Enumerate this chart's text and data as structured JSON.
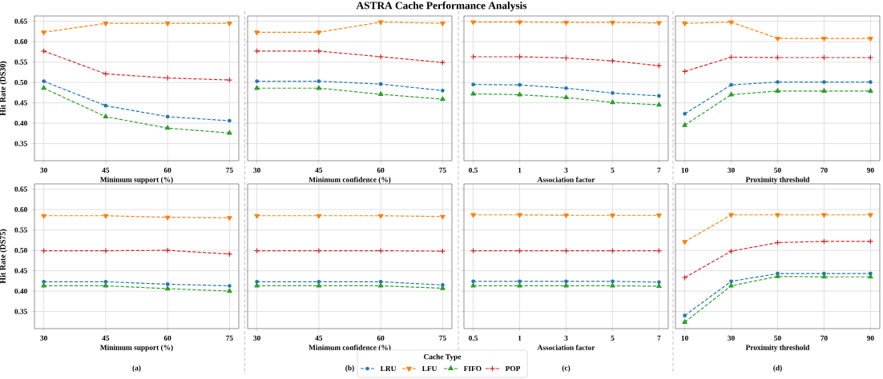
{
  "chart_data": [
    {
      "type": "line",
      "xlabel": "Minimum support (%)",
      "ylabel": "Hit Rate (DS30)",
      "categories": [
        "30",
        "45",
        "60",
        "75"
      ],
      "ylim": [
        0.308,
        0.663
      ],
      "yticks": [
        0.35,
        {
          "value": 0.4,
          "label": "0.40"
        },
        0.45,
        {
          "value": 0.5,
          "label": "0.50"
        },
        0.55,
        {
          "value": 0.6,
          "label": "0.60"
        },
        0.65
      ],
      "grid": true,
      "line_style": "dashed",
      "series": [
        {
          "color": "#1f77b4",
          "marker": "circle",
          "values": [
            0.503,
            0.443,
            0.416,
            0.406
          ]
        },
        {
          "color": "#ff7f0e",
          "marker": "triangle_down",
          "values": [
            0.623,
            0.645,
            0.645,
            0.645
          ]
        },
        {
          "color": "#2ca02c",
          "marker": "triangle",
          "values": [
            0.486,
            0.416,
            0.388,
            0.376
          ]
        },
        {
          "color": "#d62728",
          "marker": "cross",
          "values": [
            0.577,
            0.521,
            0.511,
            0.506
          ]
        }
      ]
    },
    {
      "type": "line",
      "title": "ASTRA Cache Performance Analysis",
      "xlabel": "Minimum confidence (%)",
      "categories": [
        "30",
        "45",
        "60",
        "75"
      ],
      "ylim": [
        0.308,
        0.663
      ],
      "yticks": [
        0.35,
        0.4,
        0.45,
        0.5,
        0.55,
        0.6,
        0.65
      ],
      "tick_labels": "x",
      "grid": true,
      "line_style": "dashed",
      "series": [
        {
          "color": "#1f77b4",
          "marker": "circle",
          "values": [
            0.503,
            0.503,
            0.496,
            0.48
          ]
        },
        {
          "color": "#ff7f0e",
          "marker": "triangle_down",
          "values": [
            0.623,
            0.623,
            0.648,
            0.645
          ]
        },
        {
          "color": "#2ca02c",
          "marker": "triangle",
          "values": [
            0.486,
            0.486,
            0.471,
            0.459
          ]
        },
        {
          "color": "#d62728",
          "marker": "cross",
          "values": [
            0.577,
            0.577,
            0.563,
            0.549
          ]
        }
      ]
    },
    {
      "type": "line",
      "xlabel": "Association factor",
      "categories": [
        "0.5",
        "1",
        "3",
        "5",
        "7"
      ],
      "ylim": [
        0.308,
        0.663
      ],
      "yticks": [
        0.35,
        0.4,
        0.45,
        0.5,
        0.55,
        0.6,
        0.65
      ],
      "tick_labels": "x",
      "grid": true,
      "line_style": "dashed",
      "series": [
        {
          "color": "#1f77b4",
          "marker": "circle",
          "values": [
            0.495,
            0.494,
            0.486,
            0.474,
            0.467
          ]
        },
        {
          "color": "#ff7f0e",
          "marker": "triangle_down",
          "values": [
            0.648,
            0.648,
            0.647,
            0.647,
            0.646
          ]
        },
        {
          "color": "#2ca02c",
          "marker": "triangle",
          "values": [
            0.472,
            0.47,
            0.463,
            0.451,
            0.445
          ]
        },
        {
          "color": "#d62728",
          "marker": "cross",
          "values": [
            0.563,
            0.563,
            0.56,
            0.553,
            0.541
          ]
        }
      ]
    },
    {
      "type": "line",
      "xlabel": "Proximity threshold",
      "categories": [
        "10",
        "30",
        "50",
        "70",
        "90"
      ],
      "ylim": [
        0.308,
        0.663
      ],
      "yticks": [
        0.35,
        0.4,
        0.45,
        0.5,
        0.55,
        0.6,
        0.65
      ],
      "tick_labels": "x",
      "grid": true,
      "line_style": "dashed",
      "series": [
        {
          "color": "#1f77b4",
          "marker": "circle",
          "values": [
            0.423,
            0.494,
            0.501,
            0.501,
            0.501
          ]
        },
        {
          "color": "#ff7f0e",
          "marker": "triangle_down",
          "values": [
            0.645,
            0.648,
            0.608,
            0.608,
            0.608
          ]
        },
        {
          "color": "#2ca02c",
          "marker": "triangle",
          "values": [
            0.395,
            0.47,
            0.479,
            0.479,
            0.479
          ]
        },
        {
          "color": "#d62728",
          "marker": "cross",
          "values": [
            0.527,
            0.562,
            0.561,
            0.561,
            0.561
          ]
        }
      ]
    },
    {
      "type": "line",
      "xlabel": "Minimum support (%)",
      "ylabel": "Hit Rate (DS75)",
      "annotations": [
        "(a)"
      ],
      "categories": [
        "30",
        "45",
        "60",
        "75"
      ],
      "ylim": [
        0.308,
        0.663
      ],
      "yticks": [
        0.35,
        {
          "value": 0.4,
          "label": "0.40"
        },
        0.45,
        {
          "value": 0.5,
          "label": "0.50"
        },
        0.55,
        {
          "value": 0.6,
          "label": "0.60"
        },
        0.65
      ],
      "grid": true,
      "line_style": "dashed",
      "series": [
        {
          "color": "#1f77b4",
          "marker": "circle",
          "values": [
            0.423,
            0.423,
            0.417,
            0.413
          ]
        },
        {
          "color": "#ff7f0e",
          "marker": "triangle_down",
          "values": [
            0.585,
            0.585,
            0.581,
            0.58
          ]
        },
        {
          "color": "#2ca02c",
          "marker": "triangle",
          "values": [
            0.413,
            0.413,
            0.406,
            0.4
          ]
        },
        {
          "color": "#d62728",
          "marker": "cross",
          "values": [
            0.499,
            0.499,
            0.5,
            0.491
          ]
        }
      ]
    },
    {
      "type": "line",
      "xlabel": "Minimum confidence (%)",
      "annotations": [
        "(b)"
      ],
      "legend_title": "Cache Type",
      "legend": "bottom",
      "categories": [
        "30",
        "45",
        "60",
        "75"
      ],
      "ylim": [
        0.308,
        0.663
      ],
      "yticks": [
        0.35,
        0.4,
        0.45,
        0.5,
        0.55,
        0.6,
        0.65
      ],
      "tick_labels": "x",
      "grid": true,
      "line_style": "dashed",
      "series": [
        {
          "name": "LRU",
          "color": "#1f77b4",
          "marker": "circle",
          "values": [
            0.423,
            0.423,
            0.423,
            0.415
          ]
        },
        {
          "name": "LFU",
          "color": "#ff7f0e",
          "marker": "triangle_down",
          "values": [
            0.585,
            0.585,
            0.585,
            0.583
          ]
        },
        {
          "name": "FIFO",
          "color": "#2ca02c",
          "marker": "triangle",
          "values": [
            0.413,
            0.413,
            0.413,
            0.407
          ]
        },
        {
          "name": "POP",
          "color": "#d62728",
          "marker": "cross",
          "values": [
            0.499,
            0.499,
            0.499,
            0.498
          ]
        }
      ]
    },
    {
      "type": "line",
      "xlabel": "Association factor",
      "annotations": [
        "(c)"
      ],
      "categories": [
        "0.5",
        "1",
        "3",
        "5",
        "7"
      ],
      "ylim": [
        0.308,
        0.663
      ],
      "yticks": [
        0.35,
        0.4,
        0.45,
        0.5,
        0.55,
        0.6,
        0.65
      ],
      "tick_labels": "x",
      "grid": true,
      "line_style": "dashed",
      "series": [
        {
          "color": "#1f77b4",
          "marker": "circle",
          "values": [
            0.424,
            0.424,
            0.424,
            0.424,
            0.422
          ]
        },
        {
          "color": "#ff7f0e",
          "marker": "triangle_down",
          "values": [
            0.587,
            0.587,
            0.586,
            0.586,
            0.586
          ]
        },
        {
          "color": "#2ca02c",
          "marker": "triangle",
          "values": [
            0.413,
            0.413,
            0.413,
            0.413,
            0.412
          ]
        },
        {
          "color": "#d62728",
          "marker": "cross",
          "values": [
            0.499,
            0.499,
            0.499,
            0.499,
            0.499
          ]
        }
      ]
    },
    {
      "type": "line",
      "xlabel": "Proximity threshold",
      "annotations": [
        "(d)"
      ],
      "categories": [
        "10",
        "30",
        "50",
        "70",
        "90"
      ],
      "ylim": [
        0.308,
        0.663
      ],
      "yticks": [
        0.35,
        0.4,
        0.45,
        0.5,
        0.55,
        0.6,
        0.65
      ],
      "tick_labels": "x",
      "grid": true,
      "line_style": "dashed",
      "series": [
        {
          "color": "#1f77b4",
          "marker": "circle",
          "values": [
            0.34,
            0.424,
            0.443,
            0.443,
            0.443
          ]
        },
        {
          "color": "#ff7f0e",
          "marker": "triangle_down",
          "values": [
            0.521,
            0.587,
            0.587,
            0.587,
            0.587
          ]
        },
        {
          "color": "#2ca02c",
          "marker": "triangle",
          "values": [
            0.324,
            0.413,
            0.436,
            0.435,
            0.435
          ]
        },
        {
          "color": "#d62728",
          "marker": "cross",
          "values": [
            0.433,
            0.498,
            0.519,
            0.522,
            0.522
          ]
        }
      ]
    }
  ]
}
